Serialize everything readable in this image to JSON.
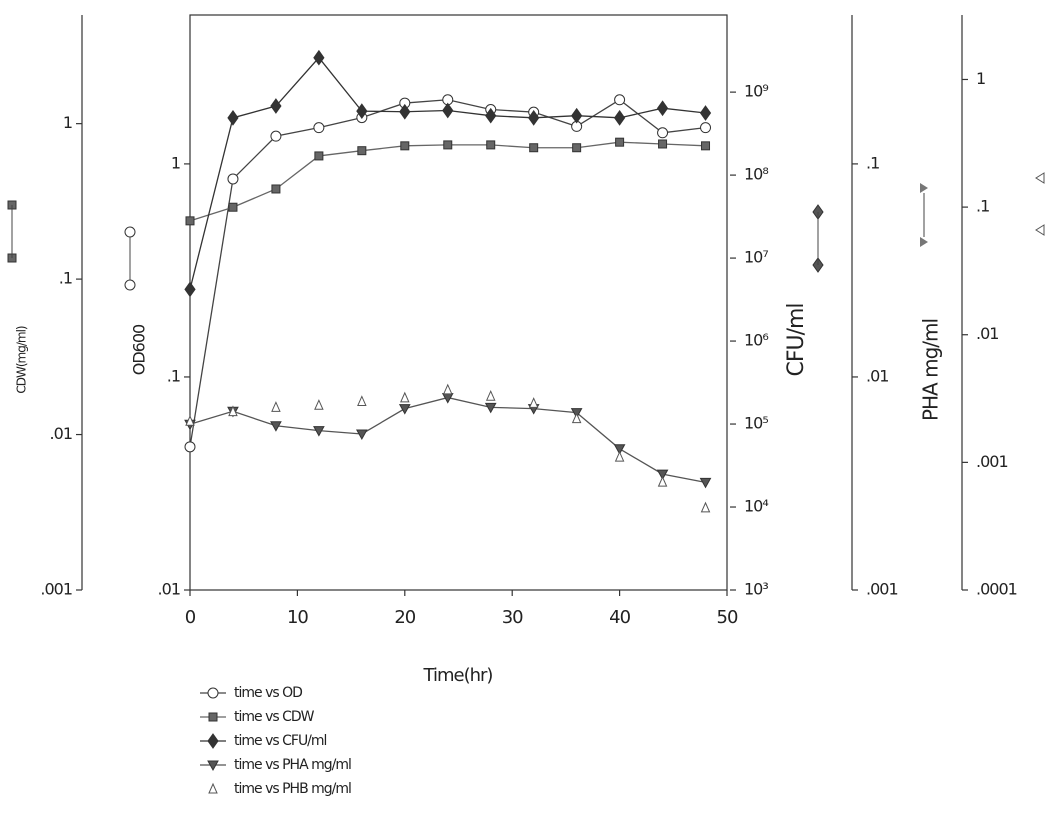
{
  "chart_data": {
    "type": "line",
    "x_label": "Time(hr)",
    "x": [
      0,
      4,
      8,
      12,
      16,
      20,
      24,
      28,
      32,
      36,
      40,
      44,
      48
    ],
    "xlim": [
      0,
      50
    ],
    "xticks": [
      0,
      10,
      20,
      30,
      40,
      50
    ],
    "y_axes": [
      {
        "label": "CDW(mg/ml)",
        "log": true,
        "lim": [
          0.001,
          5
        ],
        "ticks": [
          {
            "value": 0.001,
            "label": ".001"
          },
          {
            "value": 0.01,
            "label": ".01"
          },
          {
            "value": 0.1,
            "label": ".1"
          },
          1
        ]
      },
      {
        "label": "OD600",
        "log": true,
        "lim": [
          0.01,
          5
        ],
        "ticks": [
          {
            "value": 0.01,
            "label": ".01"
          },
          {
            "value": 0.1,
            "label": ".1"
          },
          1
        ]
      },
      {
        "label": "CFU/ml",
        "log": true,
        "lim": [
          1000,
          8500000000
        ],
        "ticks": [
          {
            "value": 1000,
            "label": "10³"
          },
          {
            "value": 10000,
            "label": "10⁴"
          },
          {
            "value": 100000,
            "label": "10⁵"
          },
          {
            "value": 1000000,
            "label": "10⁶"
          },
          {
            "value": 10000000,
            "label": "10⁷"
          },
          {
            "value": 100000000,
            "label": "10⁸"
          },
          {
            "value": 1000000000,
            "label": "10⁹"
          }
        ]
      },
      {
        "label": "PHA mg/ml",
        "log": true,
        "lim": [
          0.001,
          0.5
        ],
        "ticks": [
          {
            "value": 0.001,
            "label": ".001"
          },
          {
            "value": 0.01,
            "label": ".01"
          },
          {
            "value": 0.1,
            "label": ".1"
          }
        ]
      },
      {
        "log": true,
        "lim": [
          0.0001,
          3.2
        ],
        "ticks": [
          {
            "value": 0.0001,
            "label": ".0001"
          },
          {
            "value": 0.001,
            "label": ".001"
          },
          {
            "value": 0.01,
            "label": ".01"
          },
          {
            "value": 0.1,
            "label": ".1"
          },
          1
        ]
      }
    ],
    "series": [
      {
        "name": "time vs OD",
        "axis": 1,
        "marker": "circle",
        "line": true,
        "color": "#444",
        "values": [
          0.047,
          0.85,
          1.35,
          1.48,
          1.65,
          1.93,
          2.0,
          1.8,
          1.75,
          1.5,
          2.0,
          1.4,
          1.48
        ]
      },
      {
        "name": "time vs CDW",
        "axis": 0,
        "marker": "square",
        "line": true,
        "color": "#666",
        "values": [
          0.237,
          0.29,
          0.38,
          0.62,
          0.67,
          0.72,
          0.73,
          0.73,
          0.7,
          0.7,
          0.76,
          0.74,
          0.72
        ]
      },
      {
        "name": "time vs CFU/ml",
        "axis": 2,
        "marker": "diamond",
        "line": true,
        "color": "#333",
        "values": [
          4200000,
          490000000,
          680000000,
          2600000000,
          590000000,
          580000000,
          600000000,
          520000000,
          490000000,
          520000000,
          490000000,
          640000000,
          560000000
        ]
      },
      {
        "name": "time vs PHA mg/ml",
        "axis": 3,
        "marker": "down",
        "line": true,
        "color": "#555",
        "values": [
          0.006,
          0.0069,
          0.0059,
          0.0056,
          0.0054,
          0.0071,
          0.008,
          0.0072,
          0.0071,
          0.0068,
          0.0046,
          0.0035,
          0.0032
        ]
      },
      {
        "name": "time vs PHB mg/ml",
        "axis": 4,
        "marker": "up",
        "line": false,
        "color": "#555",
        "values": [
          0.0021,
          0.0025,
          0.0027,
          0.0028,
          0.003,
          0.0032,
          0.0037,
          0.0033,
          0.0029,
          0.0022,
          0.0011,
          0.0007,
          0.00044
        ]
      }
    ]
  }
}
